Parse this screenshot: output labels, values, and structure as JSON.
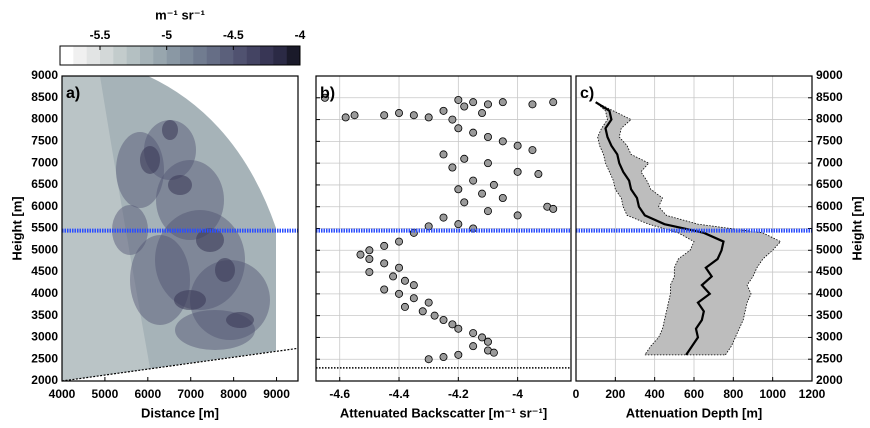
{
  "chart_data": [
    {
      "type": "image",
      "panel_label": "a)",
      "xlabel": "Distance [m]",
      "ylabel": "Height [m]",
      "xlim": [
        4000,
        9500
      ],
      "ylim": [
        2000,
        9000
      ],
      "xticks": [
        4000,
        5000,
        6000,
        7000,
        8000,
        9000
      ],
      "yticks": [
        2000,
        2500,
        3000,
        3500,
        4000,
        4500,
        5000,
        5500,
        6000,
        6500,
        7000,
        7500,
        8000,
        8500,
        9000
      ],
      "y_axis": "left",
      "grid": false,
      "colorbar": {
        "label": "m⁻¹ sr⁻¹",
        "lim": [
          -5.8,
          -4
        ],
        "ticks": [
          -5.5,
          -5,
          -4.5,
          -4
        ],
        "colors": [
          "#ffffff",
          "#f0f0f0",
          "#e2e4e4",
          "#d3d8d8",
          "#c3cccc",
          "#b4c0c2",
          "#a6b3b8",
          "#98a6ae",
          "#8a98a4",
          "#7d8a9a",
          "#717c90",
          "#666e86",
          "#5b607b",
          "#505270",
          "#444463",
          "#383655",
          "#2b2a45",
          "#1a1a2a"
        ]
      },
      "beam": {
        "x": [
          4000,
          9500
        ],
        "y": [
          2000,
          2750
        ],
        "color": "#000000"
      },
      "reference_lines": [
        {
          "y": 5450,
          "color": "#2a4dff",
          "style": "dashed"
        }
      ]
    },
    {
      "type": "scatter",
      "panel_label": "b)",
      "xlabel": "Attenuated Backscatter [m⁻¹ sr⁻¹]",
      "xlim": [
        -4.68,
        -3.82
      ],
      "ylim": [
        2000,
        9000
      ],
      "xticks": [
        -4.6,
        -4.4,
        -4.2,
        -4
      ],
      "yticks": [
        2000,
        2500,
        3000,
        3500,
        4000,
        4500,
        5000,
        5500,
        6000,
        6500,
        7000,
        7500,
        8000,
        8500,
        9000
      ],
      "y_axis": "hidden",
      "grid": true,
      "color": "#9a9a9a",
      "x": [
        -4.65,
        -4.58,
        -4.55,
        -4.45,
        -4.4,
        -4.35,
        -4.3,
        -4.25,
        -4.2,
        -4.15,
        -4.1,
        -4.05,
        -3.95,
        -3.88,
        -4.18,
        -4.12,
        -4.22,
        -4.2,
        -4.15,
        -4.1,
        -4.05,
        -4.0,
        -3.95,
        -4.25,
        -4.18,
        -4.1,
        -4.0,
        -3.93,
        -4.22,
        -4.15,
        -4.08,
        -4.2,
        -4.12,
        -4.05,
        -3.9,
        -3.88,
        -4.18,
        -4.1,
        -4.0,
        -4.25,
        -4.2,
        -4.3,
        -4.15,
        -4.35,
        -4.4,
        -4.45,
        -4.5,
        -4.53,
        -4.5,
        -4.45,
        -4.4,
        -4.5,
        -4.42,
        -4.38,
        -4.35,
        -4.45,
        -4.4,
        -4.35,
        -4.3,
        -4.38,
        -4.32,
        -4.28,
        -4.25,
        -4.22,
        -4.2,
        -4.15,
        -4.12,
        -4.1,
        -4.15,
        -4.1,
        -4.08,
        -4.2,
        -4.25,
        -4.3
      ],
      "y": [
        8500,
        8050,
        8100,
        8100,
        8150,
        8100,
        8050,
        8200,
        8450,
        8400,
        8350,
        8400,
        8350,
        8400,
        8300,
        8150,
        8000,
        7800,
        7700,
        7600,
        7500,
        7400,
        7300,
        7200,
        7100,
        7000,
        6800,
        6750,
        6900,
        6600,
        6500,
        6400,
        6300,
        6200,
        6000,
        5950,
        6100,
        5900,
        5800,
        5750,
        5600,
        5550,
        5500,
        5400,
        5200,
        5100,
        5000,
        4900,
        4800,
        4700,
        4600,
        4500,
        4400,
        4300,
        4200,
        4100,
        4000,
        3900,
        3800,
        3700,
        3600,
        3500,
        3400,
        3300,
        3200,
        3100,
        3000,
        2900,
        2800,
        2700,
        2650,
        2600,
        2550,
        2500
      ],
      "reference_lines": [
        {
          "y": 5450,
          "color": "#2a4dff",
          "style": "dashed"
        },
        {
          "y": 2300,
          "color": "#000000",
          "style": "dotted"
        }
      ]
    },
    {
      "type": "band-line",
      "panel_label": "c)",
      "xlabel": "Attenuation Depth [m]",
      "ylabel": "Height [m]",
      "xlim": [
        0,
        1200
      ],
      "ylim": [
        2000,
        9000
      ],
      "xticks": [
        0,
        200,
        400,
        600,
        800,
        1000,
        1200
      ],
      "yticks": [
        2000,
        2500,
        3000,
        3500,
        4000,
        4500,
        5000,
        5500,
        6000,
        6500,
        7000,
        7500,
        8000,
        8500,
        9000
      ],
      "y_axis": "right",
      "grid": true,
      "line_color": "#000000",
      "band_color": "#bdbdbd",
      "y": [
        2600,
        2800,
        3000,
        3200,
        3400,
        3600,
        3800,
        4000,
        4200,
        4400,
        4600,
        4800,
        5000,
        5200,
        5400,
        5600,
        5800,
        6000,
        6200,
        6400,
        6600,
        6800,
        7000,
        7200,
        7400,
        7600,
        7800,
        8000,
        8200,
        8400
      ],
      "mean": [
        560,
        590,
        620,
        610,
        640,
        650,
        620,
        680,
        640,
        690,
        660,
        720,
        740,
        750,
        650,
        450,
        350,
        320,
        310,
        280,
        270,
        240,
        220,
        210,
        180,
        160,
        150,
        180,
        170,
        100
      ],
      "lower": [
        350,
        380,
        420,
        440,
        450,
        460,
        470,
        480,
        480,
        500,
        500,
        520,
        580,
        600,
        520,
        370,
        260,
        240,
        230,
        200,
        190,
        170,
        150,
        140,
        120,
        110,
        130,
        160,
        150,
        100
      ],
      "upper": [
        760,
        790,
        810,
        830,
        850,
        860,
        870,
        890,
        870,
        900,
        920,
        950,
        1000,
        1040,
        950,
        620,
        460,
        420,
        440,
        380,
        360,
        330,
        370,
        280,
        260,
        220,
        230,
        280,
        190,
        100
      ],
      "reference_lines": [
        {
          "y": 5450,
          "color": "#2a4dff",
          "style": "dashed"
        }
      ]
    }
  ]
}
